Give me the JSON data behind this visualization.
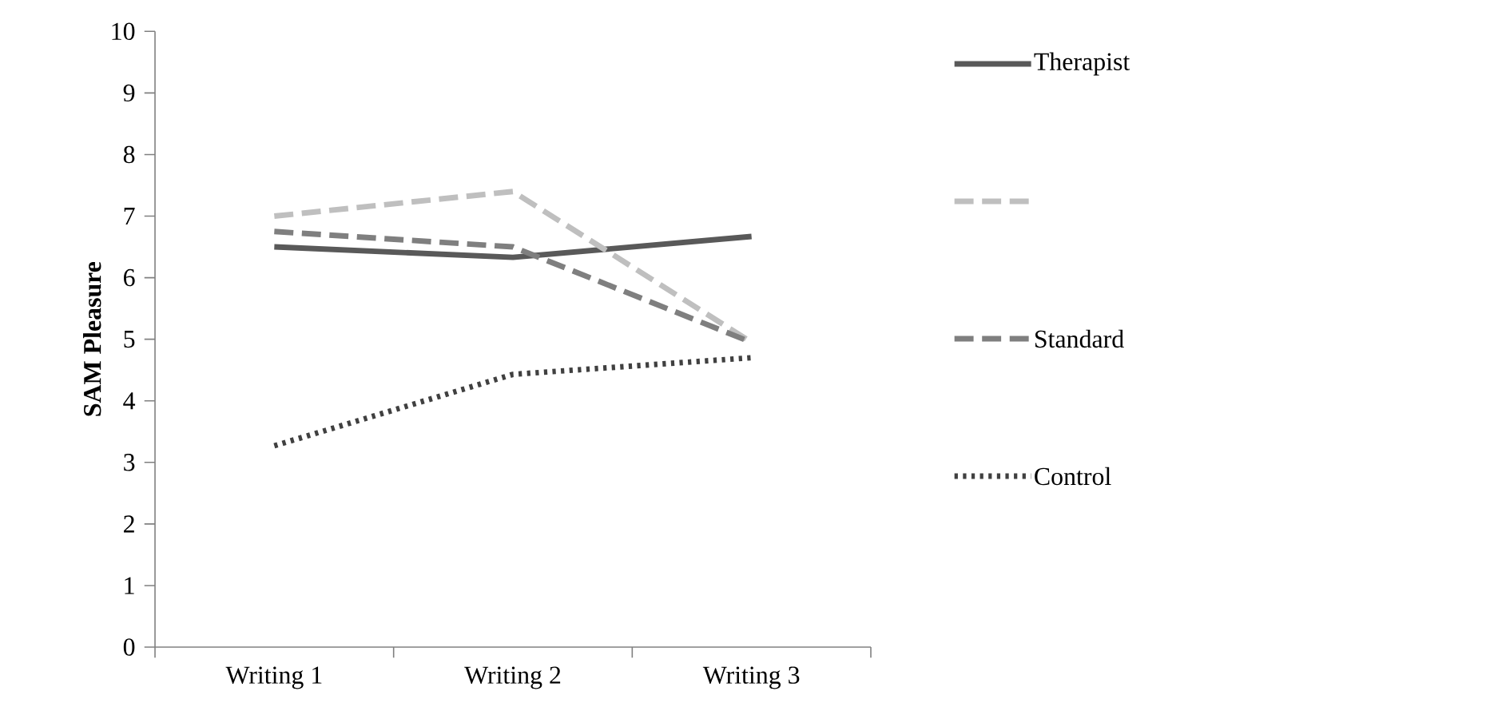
{
  "chart_data": {
    "type": "line",
    "ylabel": "SAM Pleasure",
    "categories": [
      "Writing 1",
      "Writing 2",
      "Writing 3"
    ],
    "series": [
      {
        "name": "Therapist",
        "color": "#595959",
        "line_style": "solid",
        "values": [
          6.5,
          6.33,
          6.67
        ]
      },
      {
        "color": "#bfbfbf",
        "line_style": "dashed",
        "values": [
          7.0,
          7.4,
          4.95
        ]
      },
      {
        "name": "Standard",
        "color": "#7f7f7f",
        "line_style": "dashed",
        "values": [
          6.75,
          6.5,
          4.95
        ]
      },
      {
        "name": "Control",
        "color": "#404040",
        "line_style": "dotted",
        "values": [
          3.27,
          4.43,
          4.7
        ]
      }
    ],
    "ylim": [
      0,
      10
    ],
    "yticks": [
      0,
      1,
      2,
      3,
      4,
      5,
      6,
      7,
      8,
      9,
      10
    ],
    "grid": false,
    "legend": "right",
    "marker": "none"
  }
}
